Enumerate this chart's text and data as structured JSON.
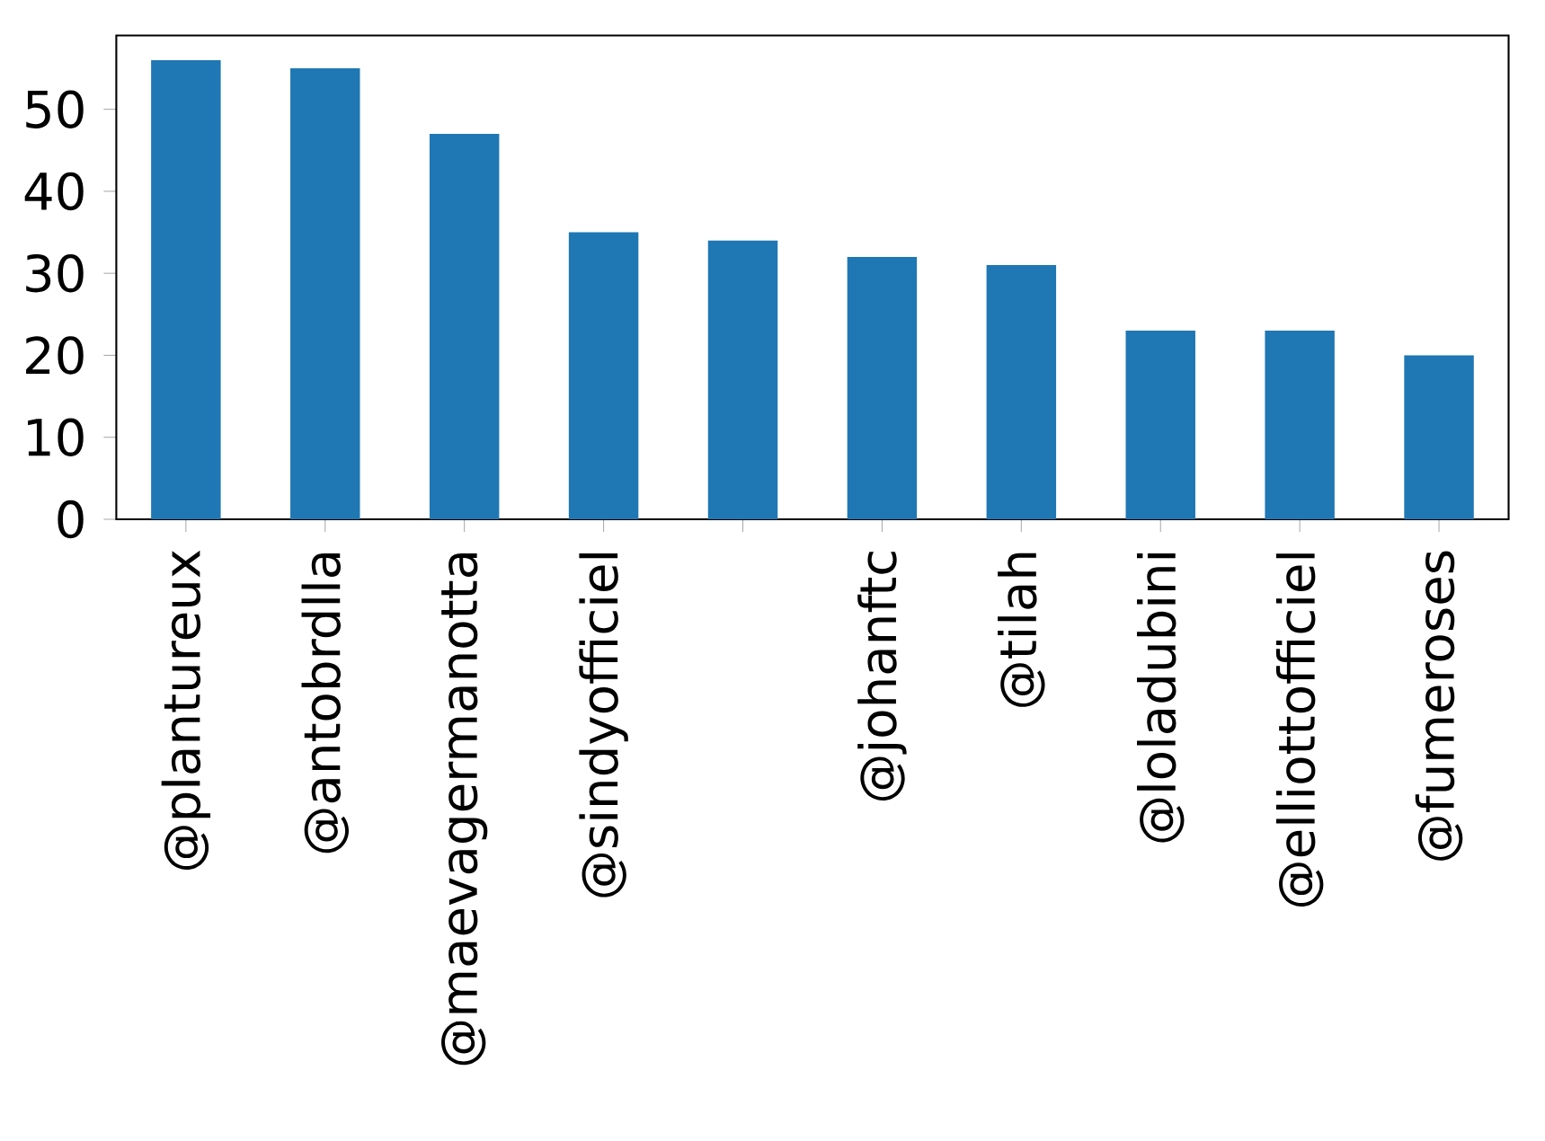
{
  "chart_data": {
    "type": "bar",
    "categories": [
      "@plantureux",
      "@antobrdlla",
      "@maevagermanotta",
      "@sindyofficiel",
      null,
      "@johanftc",
      "@tilah",
      "@loladubini",
      "@elliottofficiel",
      "@fumeroses"
    ],
    "values": [
      56,
      55,
      47,
      35,
      34,
      32,
      31,
      23,
      23,
      20
    ],
    "color": "#1f77b4",
    "ylim": [
      0,
      59
    ],
    "yticks": [
      0,
      10,
      20,
      30,
      40,
      50
    ],
    "grid": false
  }
}
